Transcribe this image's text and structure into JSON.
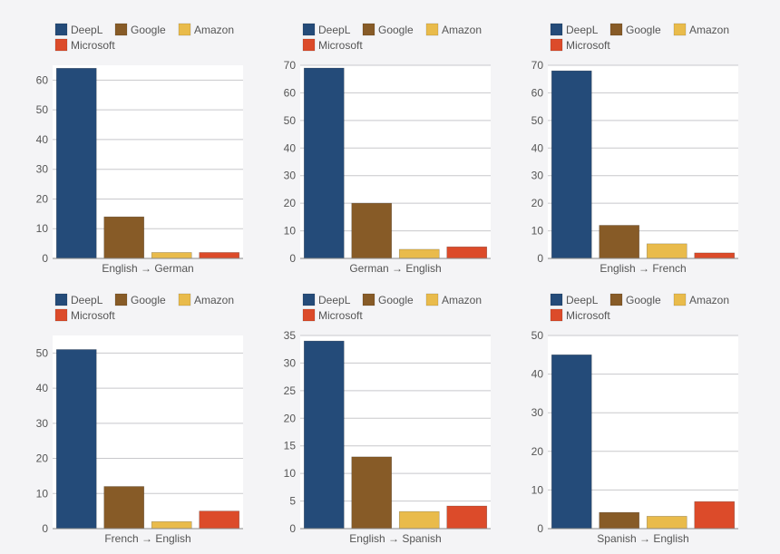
{
  "colors": {
    "DeepL": "#244b79",
    "Google": "#875b27",
    "Amazon": "#e9bb4b",
    "Microsoft": "#dc4b2a",
    "background": "#f4f4f6",
    "plot": "#ffffff",
    "grid": "#c8c8cc"
  },
  "chart_data": [
    {
      "type": "bar",
      "xlabel": "English → German",
      "categories": [
        "DeepL",
        "Google",
        "Amazon",
        "Microsoft"
      ],
      "values": [
        64,
        14,
        2,
        2
      ],
      "ylim": [
        0,
        65
      ],
      "yticks": [
        0,
        10,
        20,
        30,
        40,
        50,
        60
      ],
      "grid": true,
      "legend": "top-left"
    },
    {
      "type": "bar",
      "xlabel": "German → English",
      "categories": [
        "DeepL",
        "Google",
        "Amazon",
        "Microsoft"
      ],
      "values": [
        69,
        20,
        3.3,
        4.2
      ],
      "ylim": [
        0,
        70
      ],
      "yticks": [
        0,
        10,
        20,
        30,
        40,
        50,
        60,
        70
      ],
      "grid": true,
      "legend": "top-left"
    },
    {
      "type": "bar",
      "xlabel": "English → French",
      "categories": [
        "DeepL",
        "Google",
        "Amazon",
        "Microsoft"
      ],
      "values": [
        68,
        12,
        5.3,
        2
      ],
      "ylim": [
        0,
        70
      ],
      "yticks": [
        0,
        10,
        20,
        30,
        40,
        50,
        60,
        70
      ],
      "grid": true,
      "legend": "top-left"
    },
    {
      "type": "bar",
      "xlabel": "French → English",
      "categories": [
        "DeepL",
        "Google",
        "Amazon",
        "Microsoft"
      ],
      "values": [
        51,
        12,
        2,
        5
      ],
      "ylim": [
        0,
        55
      ],
      "yticks": [
        0,
        10,
        20,
        30,
        40,
        50
      ],
      "grid": true,
      "legend": "top-left"
    },
    {
      "type": "bar",
      "xlabel": "English → Spanish",
      "categories": [
        "DeepL",
        "Google",
        "Amazon",
        "Microsoft"
      ],
      "values": [
        34,
        13,
        3.1,
        4.1
      ],
      "ylim": [
        0,
        35
      ],
      "yticks": [
        0,
        5,
        10,
        15,
        20,
        25,
        30,
        35
      ],
      "grid": true,
      "legend": "top-left"
    },
    {
      "type": "bar",
      "xlabel": "Spanish → English",
      "categories": [
        "DeepL",
        "Google",
        "Amazon",
        "Microsoft"
      ],
      "values": [
        45,
        4.2,
        3.2,
        7
      ],
      "ylim": [
        0,
        50
      ],
      "yticks": [
        0,
        10,
        20,
        30,
        40,
        50
      ],
      "grid": true,
      "legend": "top-left"
    }
  ]
}
